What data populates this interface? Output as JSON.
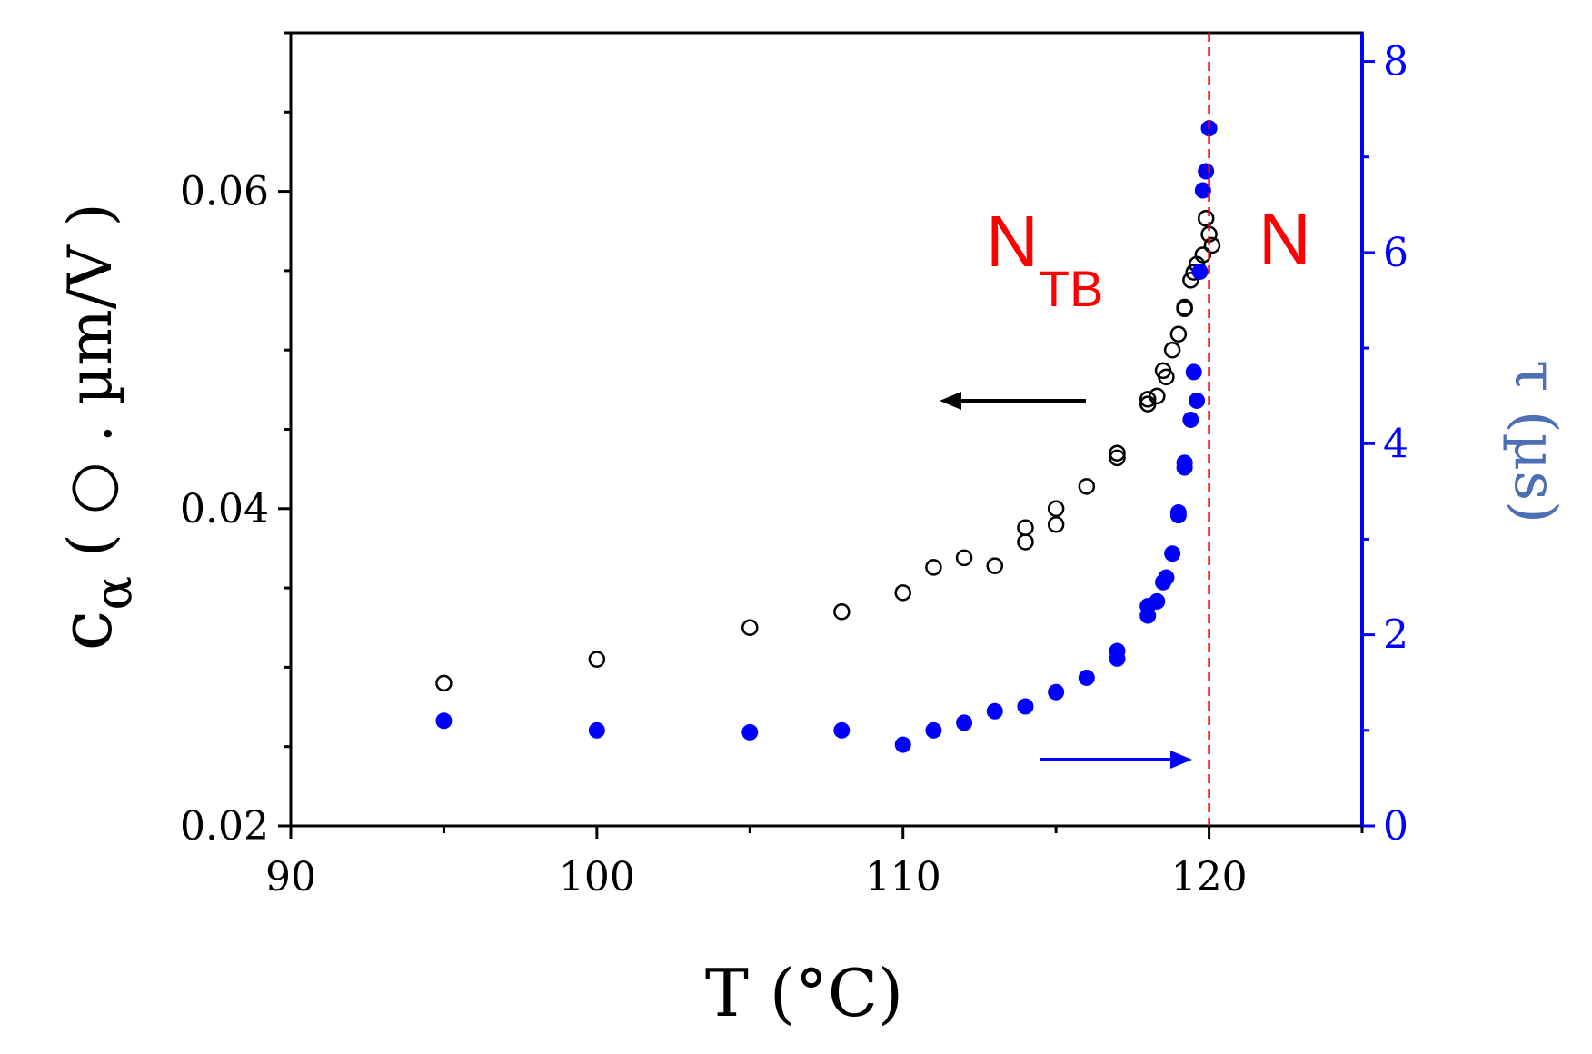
{
  "chart_data": {
    "type": "scatter",
    "title": "",
    "xlabel": "T (°C)",
    "ylabel": {
      "main": "c",
      "subscript": "α",
      "rest": " ( ○ . µm/V )"
    },
    "y2label": "τ (µs)",
    "xlim": [
      90,
      125
    ],
    "ylim": [
      0.02,
      0.07
    ],
    "y2lim": [
      0,
      8.3
    ],
    "x_ticks": [
      90,
      100,
      110,
      120
    ],
    "y_ticks": [
      0.02,
      0.04,
      0.06
    ],
    "y_tick_labels": [
      "0.02",
      "0.04",
      "0.06"
    ],
    "y2_ticks": [
      0,
      2,
      4,
      6,
      8
    ],
    "grid": false,
    "transition_temperature": 120,
    "phase_labels": {
      "left_main": "N",
      "left_sub": "TB",
      "right": "N"
    },
    "colors": {
      "c_alpha": "#000000",
      "tau": "#0000ff",
      "transition": "#ff0000",
      "y2_title": "#4d6fb3"
    },
    "series": [
      {
        "name": "c_alpha",
        "axis": "left",
        "marker": "open-circle",
        "x": [
          95,
          100,
          105,
          108,
          110,
          111,
          112,
          113,
          114,
          114,
          115,
          115,
          116,
          117,
          117,
          118,
          118,
          118.3,
          118.5,
          118.6,
          118.8,
          119,
          119.2,
          119.2,
          119.4,
          119.5,
          119.6,
          119.8,
          119.9,
          120,
          120.1
        ],
        "values": [
          0.029,
          0.0305,
          0.0325,
          0.0335,
          0.0347,
          0.0363,
          0.0369,
          0.0364,
          0.0379,
          0.0388,
          0.039,
          0.04,
          0.0414,
          0.0432,
          0.0435,
          0.0466,
          0.0469,
          0.0471,
          0.0487,
          0.0483,
          0.05,
          0.051,
          0.0526,
          0.0527,
          0.0544,
          0.0549,
          0.0554,
          0.056,
          0.0583,
          0.0573,
          0.0566
        ]
      },
      {
        "name": "tau",
        "axis": "right",
        "marker": "filled-circle",
        "x": [
          95,
          100,
          105,
          108,
          110,
          111,
          112,
          113,
          114,
          115,
          116,
          117,
          117,
          118,
          118,
          118.3,
          118.5,
          118.6,
          118.8,
          119,
          119,
          119.2,
          119.2,
          119.4,
          119.5,
          119.6,
          119.7,
          119.8,
          119.9,
          120
        ],
        "values": [
          1.1,
          1.0,
          0.98,
          1.0,
          0.85,
          1.0,
          1.08,
          1.2,
          1.25,
          1.4,
          1.55,
          1.75,
          1.83,
          2.2,
          2.3,
          2.35,
          2.55,
          2.6,
          2.85,
          3.25,
          3.28,
          3.75,
          3.8,
          4.25,
          4.75,
          4.45,
          5.8,
          6.65,
          6.85,
          7.3
        ]
      }
    ]
  }
}
